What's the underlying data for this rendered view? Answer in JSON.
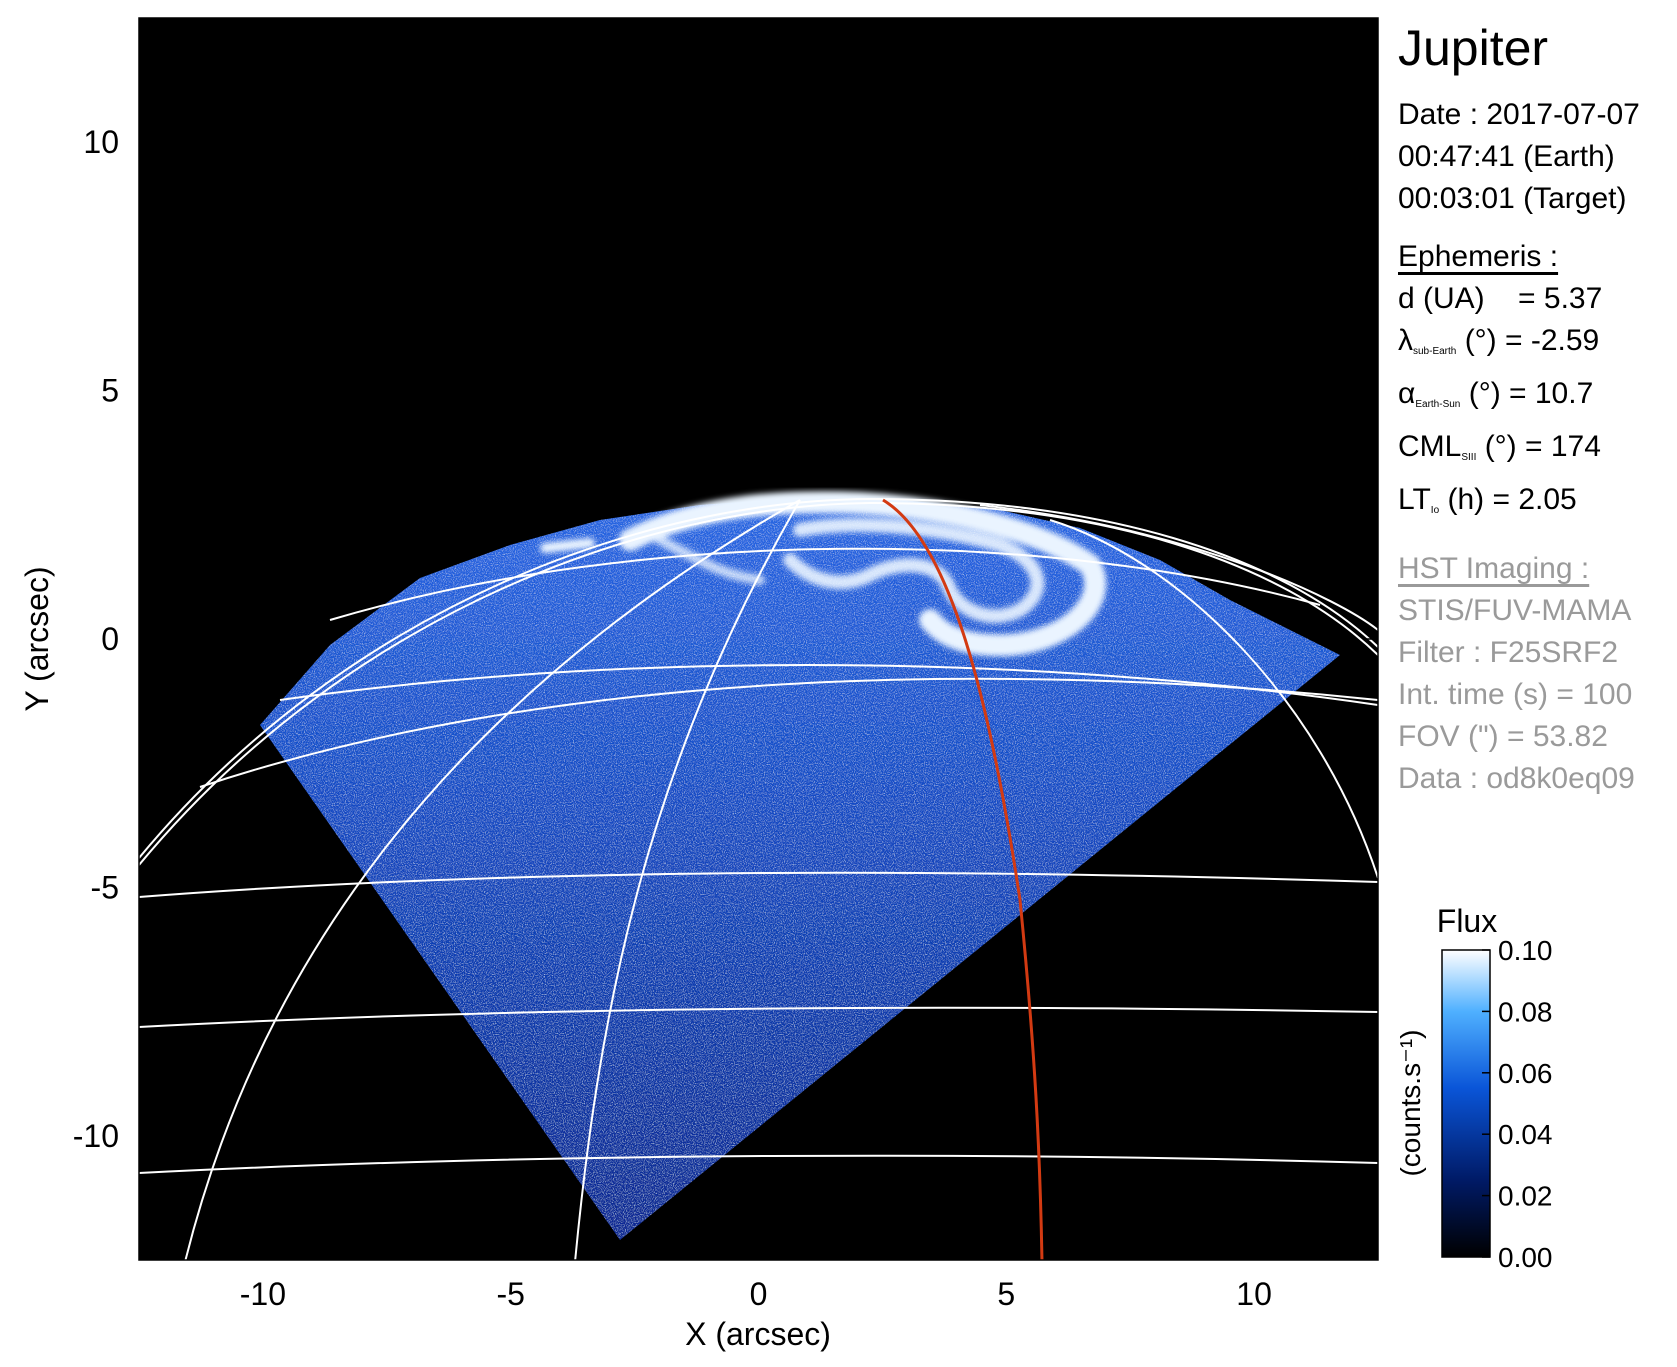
{
  "figure": {
    "target": "Jupiter",
    "observation": {
      "date_line": "Date : 2017-07-07",
      "earth_time_line": "00:47:41 (Earth)",
      "target_time_line": "00:03:01 (Target)"
    },
    "ephemeris": {
      "heading": "Ephemeris :",
      "lines": [
        {
          "symbol": "d (UA)",
          "sub": "",
          "rest": "    = 5.37"
        },
        {
          "symbol": "λ",
          "sub": "sub-Earth",
          "rest": " (°) = -2.59"
        },
        {
          "symbol": "α",
          "sub": "Earth-Sun",
          "rest": " (°) = 10.7"
        },
        {
          "symbol": "CML",
          "sub": "SIII",
          "rest": " (°) = 174"
        },
        {
          "symbol": "LT",
          "sub": "Io",
          "rest": " (h) = 2.05"
        }
      ]
    },
    "imaging": {
      "heading": "HST Imaging :",
      "lines": [
        "STIS/FUV-MAMA",
        "Filter : F25SRF2",
        "Int. time (s) = 100",
        "FOV (\") = 53.82",
        "Data : od8k0eq09"
      ]
    }
  },
  "chart_data": {
    "type": "heatmap",
    "xlabel": "X (arcsec)",
    "ylabel": "Y (arcsec)",
    "xlim": [
      -12.5,
      12.5
    ],
    "ylim": [
      -12.5,
      12.5
    ],
    "xticks": [
      "-10",
      "-5",
      "0",
      "5",
      "10"
    ],
    "yticks": [
      "10",
      "5",
      "0",
      "-5",
      "-10"
    ],
    "xtick_values": [
      -10,
      -5,
      0,
      5,
      10
    ],
    "ytick_values": [
      10,
      5,
      0,
      -5,
      -10
    ],
    "colorbar": {
      "title": "Flux",
      "unit_label": "(counts.s⁻¹)",
      "min": 0.0,
      "max": 0.1,
      "ticks": [
        "0.00",
        "0.02",
        "0.04",
        "0.06",
        "0.08",
        "0.10"
      ],
      "tick_values": [
        0.0,
        0.02,
        0.04,
        0.06,
        0.08,
        0.1
      ]
    },
    "colors": {
      "background": "#000000",
      "low": "#001a66",
      "mid": "#1a6bff",
      "high": "#ffffff",
      "grid": "#ffffff",
      "footprint": "#d33a12"
    }
  }
}
